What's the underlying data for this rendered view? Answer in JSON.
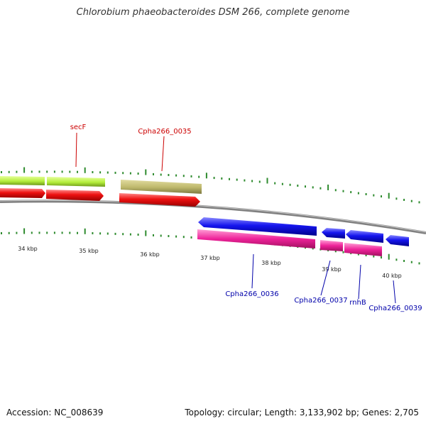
{
  "title": "Chlorobium phaeobacteroides DSM 266, complete genome",
  "footer": {
    "accession": "Accession: NC_008639",
    "summary": "Topology: circular; Length: 3,133,902 bp; Genes: 2,705"
  },
  "colors": {
    "backbone": "#808080",
    "tick": "#2e8b2e",
    "label_red": "#cc0000",
    "label_blue": "#0000aa",
    "green_gene": "#b4ee3c",
    "olive_gene": "#bdb76b",
    "red_gene": "#ee1111",
    "blue_gene": "#1515ee",
    "pink_gene": "#ee2299"
  },
  "kbp_labels": [
    "34 kbp",
    "35 kbp",
    "36 kbp",
    "37 kbp",
    "38 kbp",
    "39 kbp",
    "40 kbp"
  ],
  "gene_labels": {
    "secF": "secF",
    "cpha0035": "Cpha266_0035",
    "cpha0036": "Cpha266_0036",
    "cpha0037": "Cpha266_0037",
    "rnhB": "rnhB",
    "cpha0039": "Cpha266_0039"
  }
}
